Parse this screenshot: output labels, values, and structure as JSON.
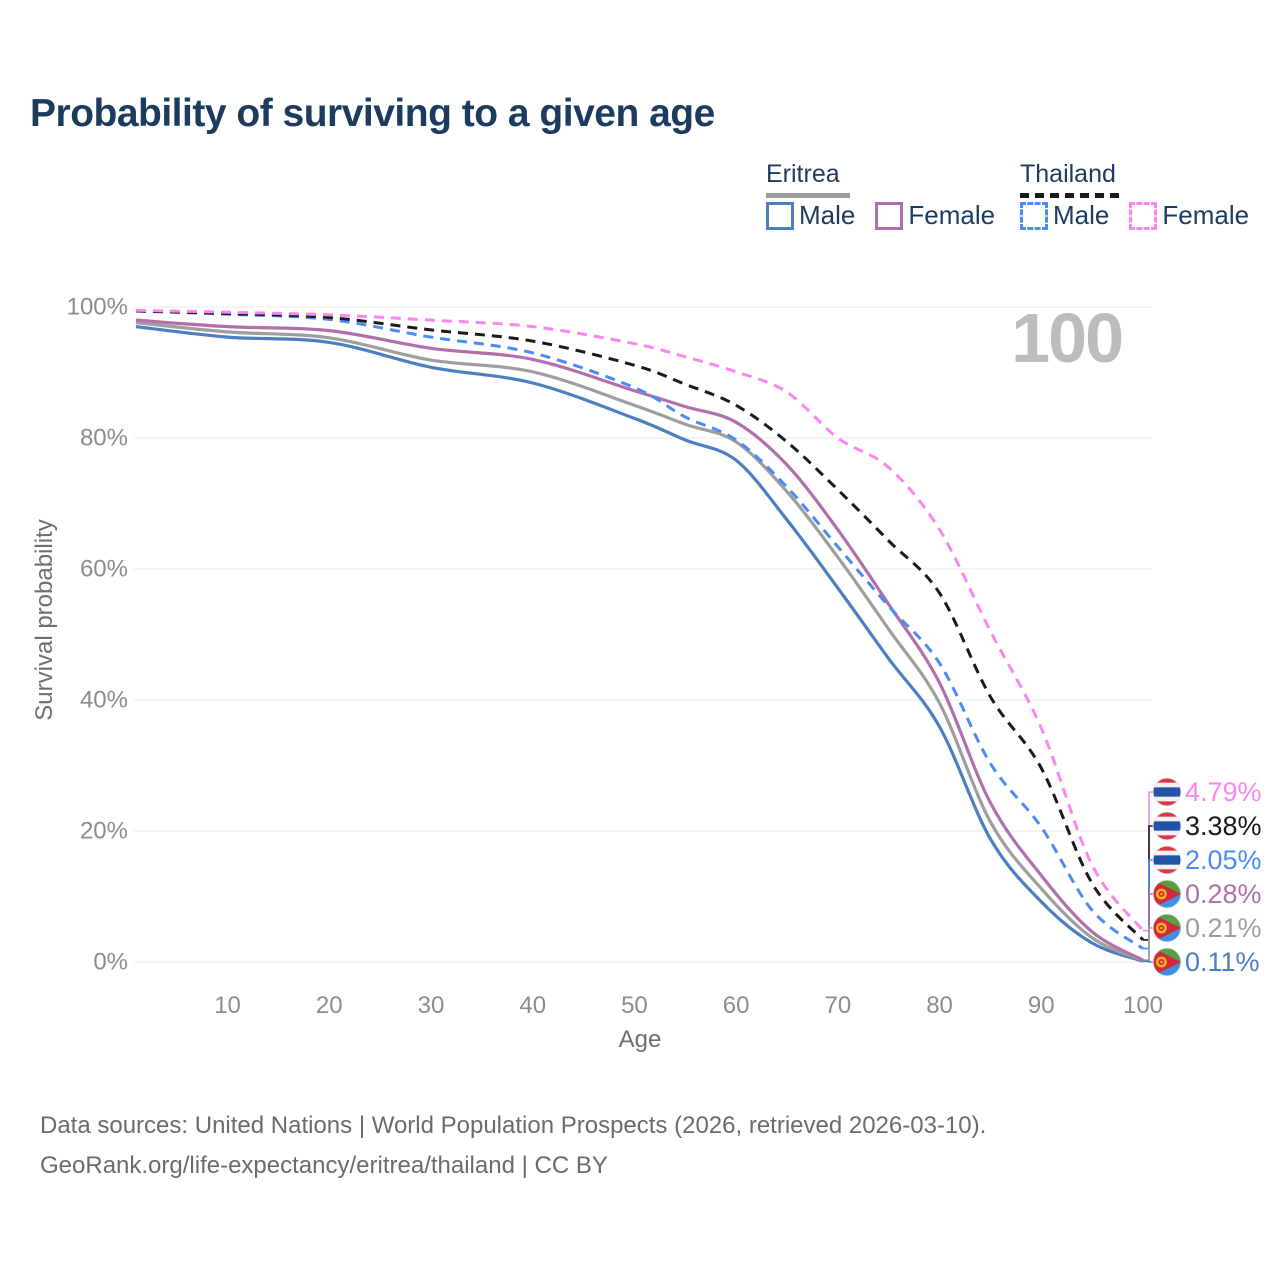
{
  "title": "Probability of surviving to a given age",
  "watermark": "100",
  "legend": {
    "eritrea": {
      "label": "Eritrea",
      "line_color": "#9e9e9e",
      "line_style": "solid",
      "items": [
        {
          "label": "Male",
          "color": "#4d7fc0",
          "dashed": false
        },
        {
          "label": "Female",
          "color": "#b170ac",
          "dashed": false
        }
      ]
    },
    "thailand": {
      "label": "Thailand",
      "line_color": "#1a1a1a",
      "line_style": "dashed",
      "items": [
        {
          "label": "Male",
          "color": "#4a8cf7",
          "dashed": true
        },
        {
          "label": "Female",
          "color": "#fb85f1",
          "dashed": true
        }
      ]
    }
  },
  "chart_data": {
    "type": "line",
    "title": "Probability of surviving to a given age",
    "xlabel": "Age",
    "ylabel": "Survival probability",
    "xlim": [
      1,
      100
    ],
    "ylim": [
      0,
      100
    ],
    "grid": "horizontal",
    "legend_position": "top-right",
    "x_ticks": [
      10,
      20,
      30,
      40,
      50,
      60,
      70,
      80,
      90,
      100
    ],
    "y_ticks": [
      {
        "value": 0,
        "label": "0%"
      },
      {
        "value": 20,
        "label": "20%"
      },
      {
        "value": 40,
        "label": "40%"
      },
      {
        "value": 60,
        "label": "60%"
      },
      {
        "value": 80,
        "label": "80%"
      },
      {
        "value": 100,
        "label": "100%"
      }
    ],
    "x": [
      1,
      10,
      20,
      30,
      40,
      50,
      55,
      60,
      65,
      70,
      75,
      80,
      85,
      90,
      95,
      100
    ],
    "series": [
      {
        "name": "Thailand Female",
        "flag": "thailand",
        "color": "#fb85f1",
        "dashed": true,
        "end_label": "4.79%",
        "values": [
          99.5,
          99.2,
          98.8,
          98.0,
          97.0,
          94.4,
          92.4,
          90.1,
          87.0,
          80.0,
          75.5,
          66.0,
          50.5,
          35.7,
          14.8,
          4.79
        ]
      },
      {
        "name": "Thailand",
        "flag": "thailand",
        "color": "#1a1a1a",
        "dashed": true,
        "end_label": "3.38%",
        "values": [
          99.4,
          99.0,
          98.4,
          96.5,
          94.8,
          91.1,
          88.2,
          85.0,
          79.4,
          72.1,
          64.3,
          56.3,
          40.5,
          29.6,
          12.0,
          3.38
        ]
      },
      {
        "name": "Thailand Male",
        "flag": "thailand",
        "color": "#4a8cf7",
        "dashed": true,
        "end_label": "2.05%",
        "values": [
          99.4,
          98.9,
          98.1,
          95.4,
          93.0,
          87.7,
          83.2,
          79.7,
          72.5,
          63.4,
          54.3,
          45.6,
          30.3,
          20.6,
          7.9,
          2.05
        ]
      },
      {
        "name": "Eritrea Female",
        "flag": "eritrea",
        "color": "#b170ac",
        "dashed": false,
        "end_label": "0.28%",
        "values": [
          98.0,
          97.0,
          96.4,
          93.7,
          92.0,
          87.2,
          84.8,
          82.4,
          75.9,
          66.0,
          54.6,
          42.6,
          24.3,
          13.2,
          4.6,
          0.28
        ]
      },
      {
        "name": "Eritrea",
        "flag": "eritrea",
        "color": "#9e9e9e",
        "dashed": false,
        "end_label": "0.21%",
        "values": [
          97.6,
          96.2,
          95.3,
          91.9,
          90.1,
          85.0,
          82.1,
          79.4,
          71.8,
          61.8,
          50.8,
          39.5,
          21.4,
          11.2,
          3.7,
          0.21
        ]
      },
      {
        "name": "Eritrea Male",
        "flag": "eritrea",
        "color": "#4d7fc0",
        "dashed": false,
        "end_label": "0.11%",
        "values": [
          97.0,
          95.4,
          94.6,
          90.8,
          88.4,
          83.0,
          79.7,
          76.6,
          67.5,
          57.1,
          46.3,
          35.9,
          18.8,
          9.2,
          2.9,
          0.11
        ]
      }
    ],
    "flag_colors": {
      "thailand": {
        "red": "#dd3545",
        "white": "#f2f2f4",
        "blue": "#2353a5"
      },
      "eritrea": {
        "green": "#57a042",
        "blue": "#418fde",
        "red": "#d2283c",
        "gold": "#f3b517"
      }
    }
  },
  "colors": {
    "title": "#1c3b5e",
    "axis_text": "#8c8c8c",
    "grid": "#e8e8e8",
    "watermark": "#bcbcbc",
    "footer_text": "#6b6b6b"
  },
  "footer": {
    "line1": "Data sources: United Nations | World Population Prospects (2026, retrieved 2026-03-10).",
    "line2": "GeoRank.org/life-expectancy/eritrea/thailand | CC BY"
  }
}
